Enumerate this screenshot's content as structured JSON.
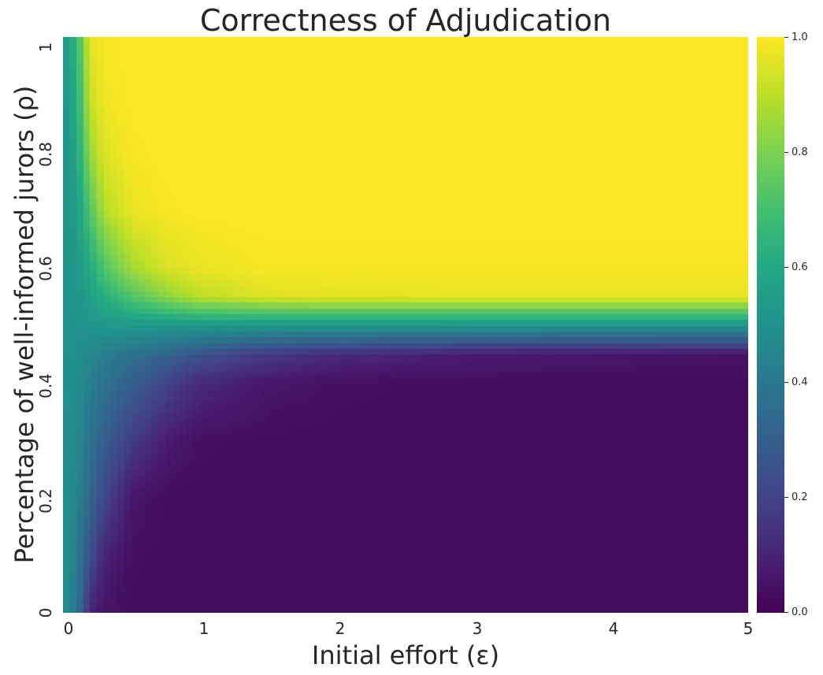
{
  "chart_data": {
    "type": "heatmap",
    "title": "Correctness of Adjudication",
    "xlabel": "Initial effort (ε)",
    "ylabel": "Percentage of well-informed jurors (ρ)",
    "xlim": [
      0,
      5
    ],
    "ylim": [
      0,
      1
    ],
    "x_ticks": [
      "0",
      "1",
      "2",
      "3",
      "4",
      "5"
    ],
    "y_ticks": [
      "0",
      "0.2",
      "0.4",
      "0.6",
      "0.8",
      "1"
    ],
    "colorbar": {
      "range": [
        0,
        1
      ],
      "ticks": [
        "0.0",
        "0.2",
        "0.4",
        "0.6",
        "0.8",
        "1.0"
      ],
      "colormap": "viridis"
    },
    "grid": false,
    "x": [
      0.0,
      0.1,
      0.2,
      0.3,
      0.5,
      0.75,
      1.0,
      1.5,
      2.0,
      3.0,
      4.0,
      5.0
    ],
    "y": [
      0.0,
      0.1,
      0.2,
      0.3,
      0.4,
      0.45,
      0.5,
      0.55,
      0.6,
      0.7,
      0.8,
      0.9,
      1.0
    ],
    "values": [
      [
        0.5,
        0.4,
        0.1,
        0.05,
        0.03,
        0.03,
        0.03,
        0.03,
        0.03,
        0.03,
        0.03,
        0.03
      ],
      [
        0.5,
        0.42,
        0.25,
        0.1,
        0.04,
        0.03,
        0.03,
        0.03,
        0.03,
        0.03,
        0.03,
        0.03
      ],
      [
        0.5,
        0.45,
        0.33,
        0.22,
        0.06,
        0.03,
        0.03,
        0.03,
        0.03,
        0.03,
        0.03,
        0.03
      ],
      [
        0.5,
        0.47,
        0.38,
        0.3,
        0.18,
        0.08,
        0.04,
        0.03,
        0.03,
        0.03,
        0.03,
        0.03
      ],
      [
        0.5,
        0.48,
        0.43,
        0.38,
        0.3,
        0.2,
        0.12,
        0.06,
        0.04,
        0.03,
        0.03,
        0.03
      ],
      [
        0.5,
        0.49,
        0.46,
        0.43,
        0.38,
        0.32,
        0.25,
        0.17,
        0.12,
        0.08,
        0.06,
        0.05
      ],
      [
        0.5,
        0.51,
        0.52,
        0.53,
        0.53,
        0.53,
        0.53,
        0.52,
        0.52,
        0.51,
        0.51,
        0.51
      ],
      [
        0.5,
        0.52,
        0.56,
        0.62,
        0.72,
        0.82,
        0.9,
        0.95,
        0.96,
        0.97,
        0.97,
        0.97
      ],
      [
        0.5,
        0.53,
        0.6,
        0.72,
        0.86,
        0.94,
        0.97,
        0.99,
        0.99,
        0.99,
        0.99,
        0.99
      ],
      [
        0.5,
        0.55,
        0.72,
        0.88,
        0.97,
        0.99,
        1.0,
        1.0,
        1.0,
        1.0,
        1.0,
        1.0
      ],
      [
        0.5,
        0.58,
        0.84,
        0.95,
        0.99,
        1.0,
        1.0,
        1.0,
        1.0,
        1.0,
        1.0,
        1.0
      ],
      [
        0.5,
        0.62,
        0.92,
        0.98,
        1.0,
        1.0,
        1.0,
        1.0,
        1.0,
        1.0,
        1.0,
        1.0
      ],
      [
        0.5,
        0.66,
        0.96,
        0.99,
        1.0,
        1.0,
        1.0,
        1.0,
        1.0,
        1.0,
        1.0,
        1.0
      ]
    ]
  }
}
